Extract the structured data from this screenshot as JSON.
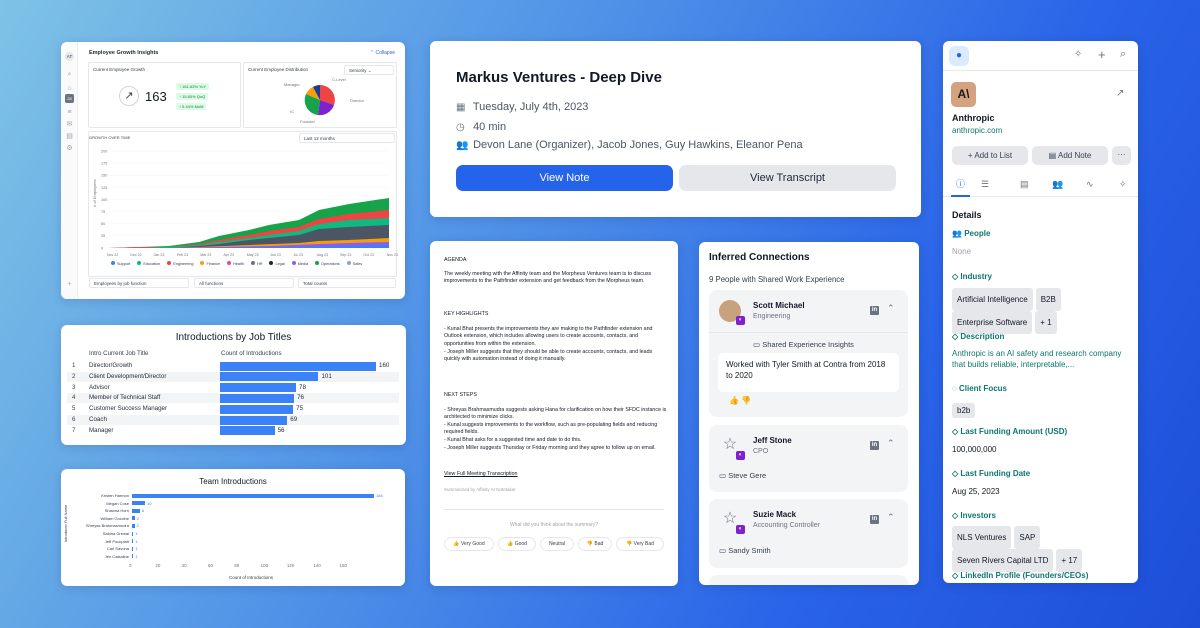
{
  "growth": {
    "title": "Employee Growth Insights",
    "collapse": "Collapse",
    "current_growth_label": "Current Employee Growth",
    "count": "163",
    "pills": [
      "161.63% YoY",
      "15.65% QoQ",
      "5.44% MoM"
    ],
    "distribution_label": "Current Employee Distribution",
    "seniority": "Seniority",
    "pie_labels": [
      "Manager",
      "C-Level",
      "Director",
      "IC",
      "Founder"
    ],
    "over_time": "GROWTH OVER TIME",
    "period": "Last 12 months",
    "y_axis": "# of Employees",
    "y_ticks": [
      "200",
      "175",
      "150",
      "125",
      "100",
      "75",
      "50",
      "25",
      "0"
    ],
    "x_ticks": [
      "Nov 22",
      "Dec 22",
      "Jan 23",
      "Feb 23",
      "Mar 23",
      "Apr 23",
      "May 23",
      "Jun 23",
      "Jul 23",
      "Aug 23",
      "Sep 23",
      "Oct 23",
      "Nov 23"
    ],
    "legend": [
      "Support",
      "Education",
      "Engineering",
      "Finance",
      "Health",
      "HR",
      "Legal",
      "Media",
      "Operations",
      "Sales"
    ],
    "legend_colors": [
      "#3b82f6",
      "#10b981",
      "#ef4444",
      "#f59e0b",
      "#ec4899",
      "#6b7280",
      "#1f2937",
      "#8b5cf6",
      "#16a34a",
      "#94a3b8"
    ],
    "filter1": "Employees by job function",
    "filter2": "All functions",
    "filter3": "Total counts",
    "rail_initials": "AT",
    "rail_badge": "28"
  },
  "meeting": {
    "title": "Markus Ventures - Deep Dive",
    "date": "Tuesday, July 4th, 2023",
    "duration": "40 min",
    "attendees": "Devon Lane (Organizer), Jacob Jones, Guy Hawkins, Eleanor Pena",
    "view_note": "View Note",
    "view_transcript": "View Transcript"
  },
  "notes": {
    "agenda_h": "AGENDA",
    "agenda": "The weekly meeting with the Affinity team and the Morpheus Ventures team is to discuss improvements to the Pathfinder extension and get feedback from the Morpheus team.",
    "highlights_h": "KEY HIGHLIGHTS",
    "highlights": [
      "- Kunal Bhat presents the improvements they are making to the Pathfinder extension and Outlook extension, which includes allowing users to create accounts, contacts, and opportunities from within the extension.",
      "- Joseph Miller suggests that they should be able to create accounts, contacts, and leads quickly with automation instead of doing it manually."
    ],
    "next_h": "NEXT STEPS",
    "next": [
      "- Shreyas Brahmasmudra suggests asking Hana for clarification on how their SFDC instance is architected to minimize clicks.",
      "- Kunal suggests improvements to the workflow, such as pre-populating fields and reducing required fields.",
      "- Kunal Bhat asks for a suggested time and date to do this.",
      "- Joseph Miller suggests Thursday or Friday morning and they agree to follow up on email."
    ],
    "link": "View Full Meeting Transcription",
    "summarized": "Summarized by Affinity AI Notetaker",
    "question": "What did you think about the summary?",
    "feedback": [
      "Very Good",
      "Good",
      "Neutral",
      "Bad",
      "Very Bad"
    ]
  },
  "intro_table": {
    "title": "Introductions by Job Titles",
    "col1": "Intro Current Job Title",
    "col2": "Count of Introductions",
    "rows": [
      {
        "n": "1",
        "t": "Director/Growth",
        "v": 160
      },
      {
        "n": "2",
        "t": "Client Development/Director",
        "v": 101
      },
      {
        "n": "3",
        "t": "Advisor",
        "v": 78
      },
      {
        "n": "4",
        "t": "Member of Technical Staff",
        "v": 76
      },
      {
        "n": "5",
        "t": "Customer Success Manager",
        "v": 75
      },
      {
        "n": "6",
        "t": "Coach",
        "v": 69
      },
      {
        "n": "7",
        "t": "Manager",
        "v": 56
      }
    ]
  },
  "chart_data": {
    "type": "bar",
    "title": "Team Introductions",
    "xlabel": "Count of Introductions",
    "ylabel": "Introducer Full Name",
    "categories": [
      "Kristen Harmon",
      "Megan Cose",
      "Shawna Horn",
      "William Groothe",
      "Shreyas Brahmasmudra",
      "Sabina Grewal",
      "Jeff Poucplatt",
      "Carl Savona",
      "Jen Castaline"
    ],
    "values": [
      184,
      10,
      6,
      2,
      2,
      1,
      1,
      1,
      1
    ],
    "xticks": [
      "0",
      "20",
      "40",
      "60",
      "80",
      "100",
      "120",
      "140",
      "160"
    ],
    "xlim": [
      0,
      190
    ]
  },
  "connections": {
    "title": "Inferred Connections",
    "subtitle": "9 People with Shared Work Experience",
    "people": [
      {
        "name": "Scott Michael",
        "role": "Engineering",
        "insights": "Shared Experience Insights",
        "detail": "Worked with Tyler Smith at Contra from 2018 to 2020"
      },
      {
        "name": "Jeff Stone",
        "role": "CPO",
        "via": "Steve Gere"
      },
      {
        "name": "Suzie Mack",
        "role": "Accounting Controller",
        "via": "Sandy Smith"
      }
    ]
  },
  "company": {
    "logo": "A\\",
    "name": "Anthropic",
    "url": "anthropic.com",
    "add_list": "Add to List",
    "add_note": "Add Note",
    "details": "Details",
    "people_h": "People",
    "people_v": "None",
    "industry_h": "Industry",
    "industry": [
      "Artificial Intelligence",
      "B2B",
      "Enterprise Software",
      "+ 1"
    ],
    "desc_h": "Description",
    "desc": "Anthropic is an AI safety and research company that builds reliable, interpretable,...",
    "focus_h": "Client Focus",
    "focus": "b2b",
    "funding_h": "Last Funding Amount (USD)",
    "funding": "100,000,000",
    "fdate_h": "Last Funding Date",
    "fdate": "Aug 25, 2023",
    "inv_h": "Investors",
    "investors": [
      "NLS Ventures",
      "SAP",
      "Seven Rivers Capital LTD",
      "+ 17"
    ],
    "linkedin_h": "LinkedIn Profile (Founders/CEOs)"
  }
}
